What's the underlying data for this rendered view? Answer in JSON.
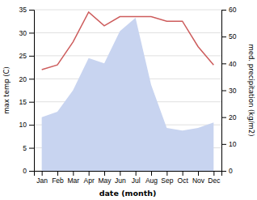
{
  "chart_data": {
    "type": "line",
    "categories": [
      "Jan",
      "Feb",
      "Mar",
      "Apr",
      "May",
      "Jun",
      "Jul",
      "Aug",
      "Sep",
      "Oct",
      "Nov",
      "Dec"
    ],
    "series": [
      {
        "type": "area",
        "axis": "y2",
        "color": "#c8d4f0",
        "values": [
          20.0,
          22.0,
          30.0,
          42.0,
          40.0,
          52.0,
          57.0,
          32.0,
          16.0,
          15.0,
          16.0,
          18.0
        ]
      },
      {
        "type": "line",
        "color": "#cd5c5c",
        "values": [
          22.0,
          23.0,
          28.0,
          34.5,
          31.5,
          33.5,
          33.5,
          33.5,
          32.5,
          32.5,
          27.0,
          23.0
        ]
      }
    ],
    "xlabel": "date (month)",
    "ylabel": "max temp (C)",
    "y2label": "med. precipitation (kg/m2)",
    "ylim": [
      0,
      35
    ],
    "yticks": [
      0,
      5,
      10,
      15,
      20,
      25,
      30,
      35
    ],
    "y2lim": [
      0,
      60
    ],
    "y2ticks": [
      0,
      10,
      20,
      30,
      40,
      50,
      60
    ],
    "grid": true
  }
}
